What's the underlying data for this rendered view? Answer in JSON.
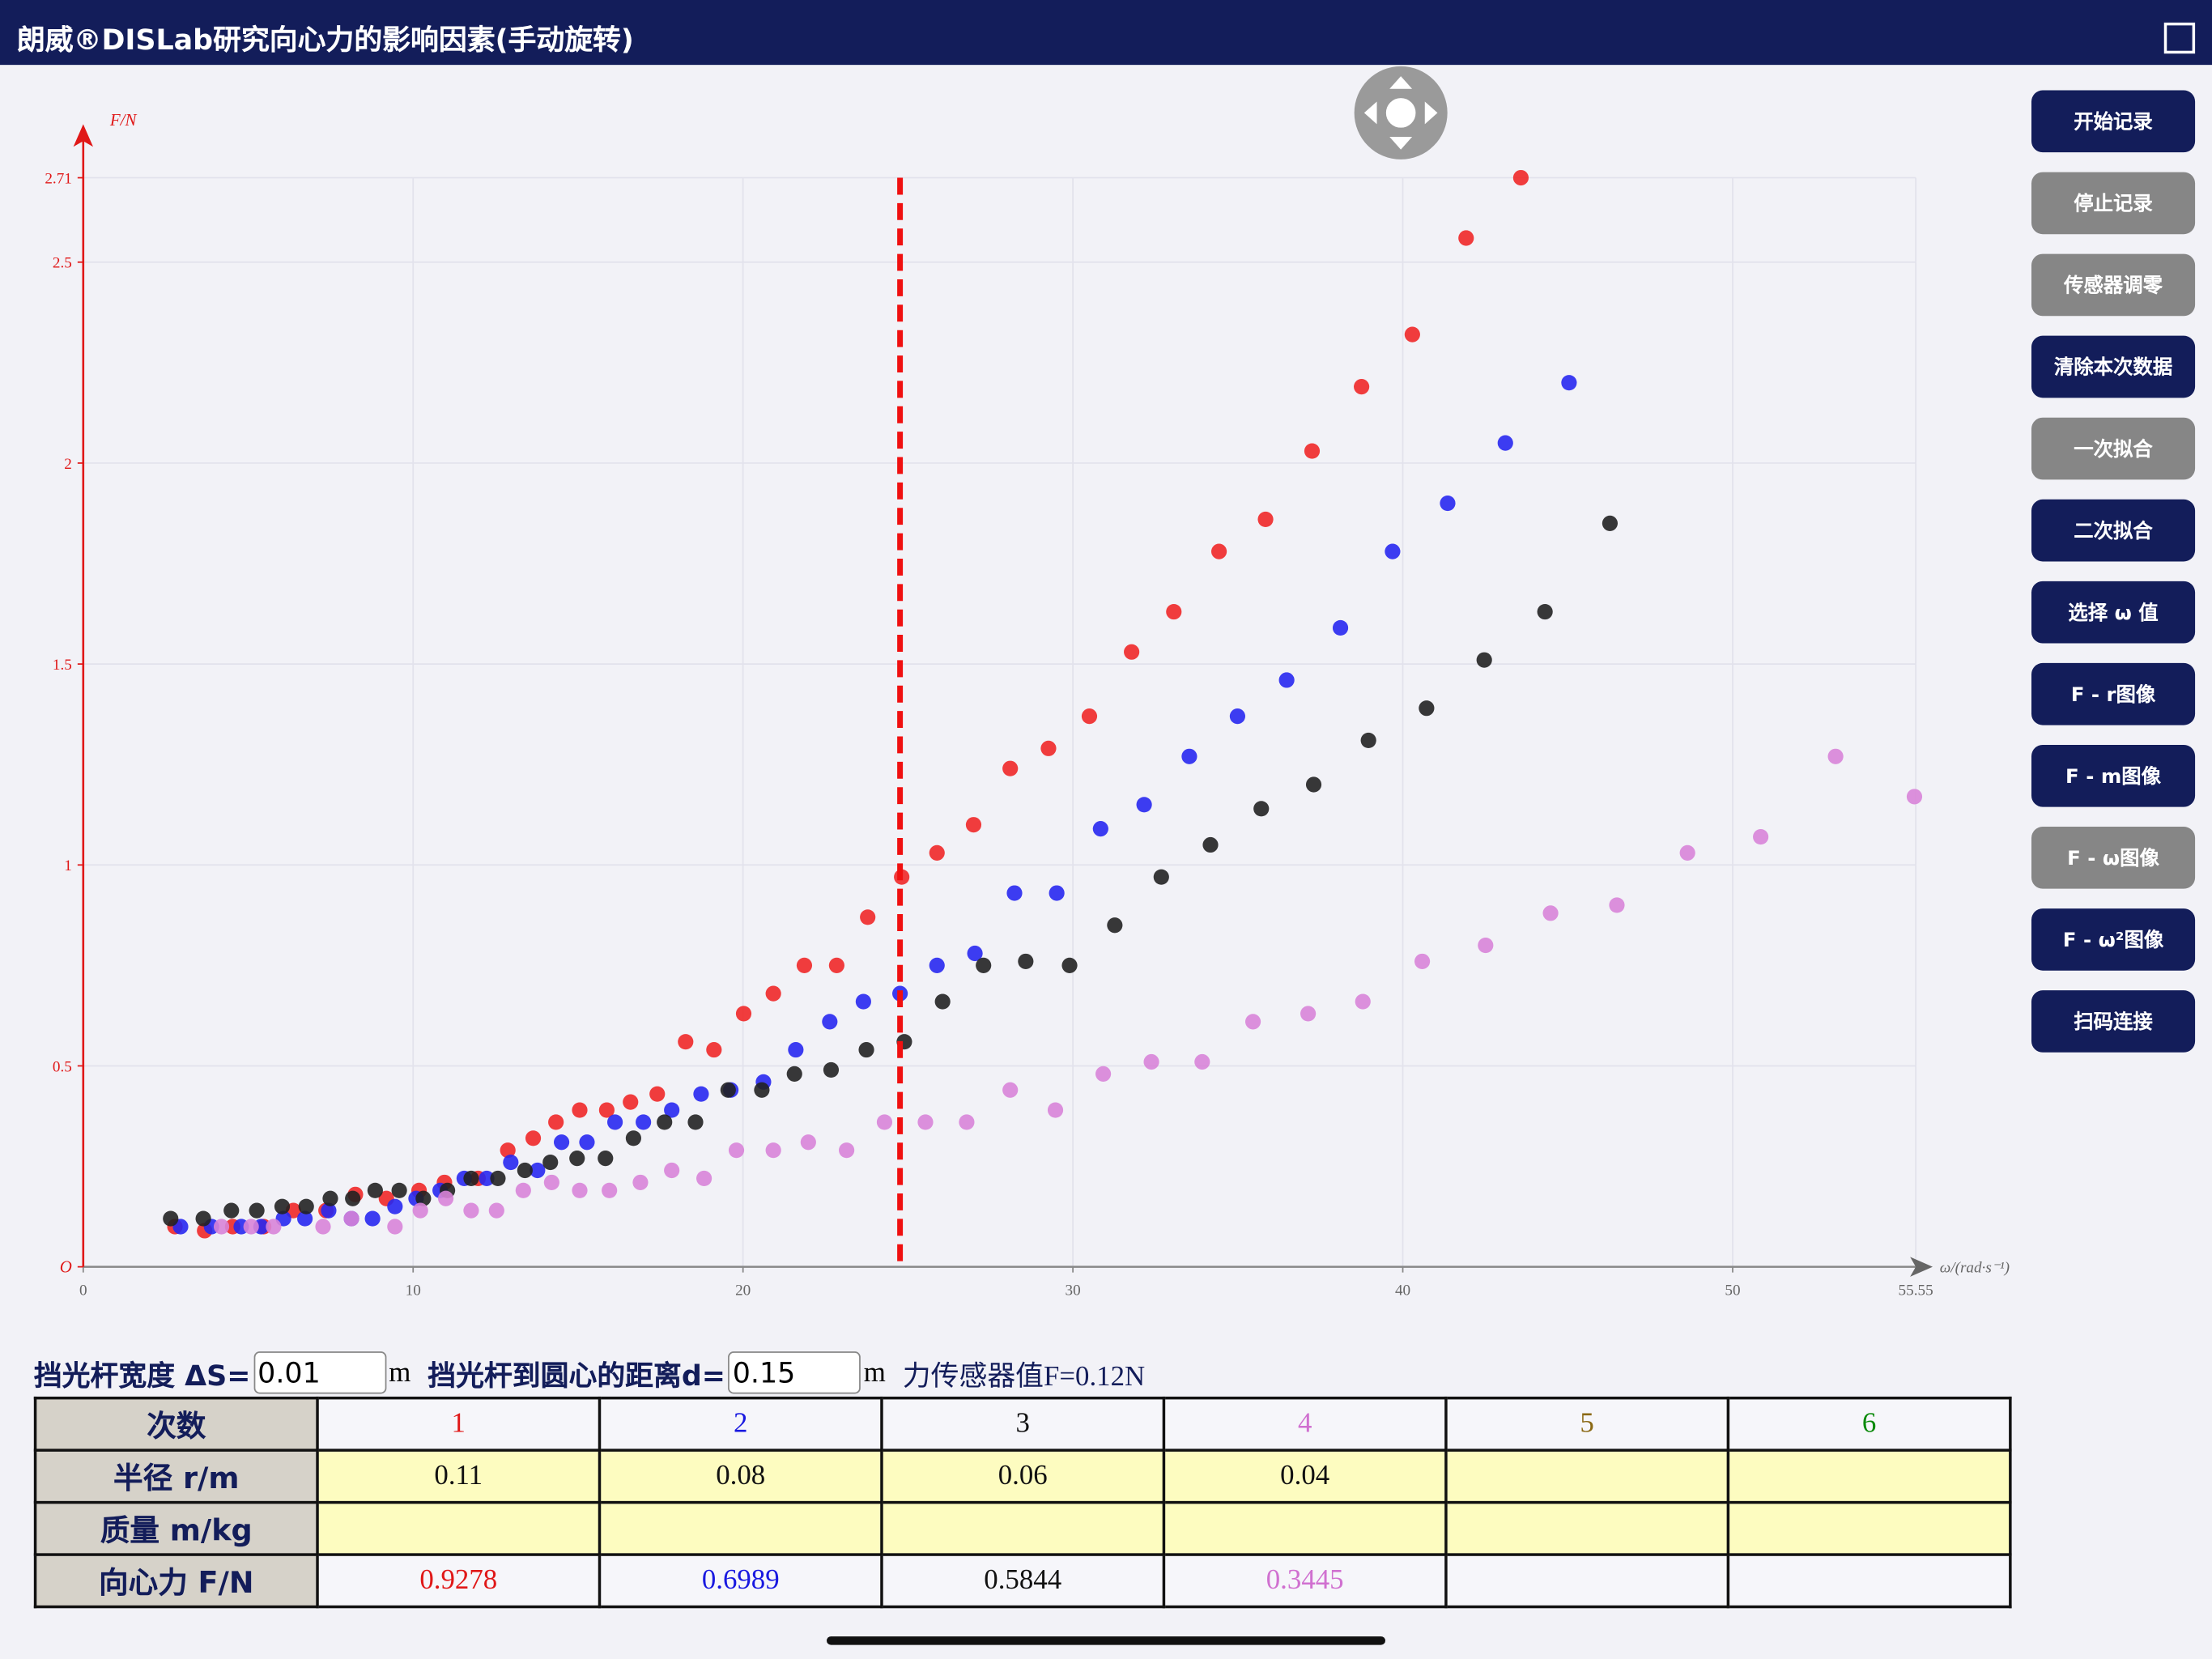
{
  "header": {
    "title": "朗威®DISLab研究向心力的影响因素(手动旋转)"
  },
  "buttons": [
    {
      "label": "开始记录",
      "enabled": true
    },
    {
      "label": "停止记录",
      "enabled": false
    },
    {
      "label": "传感器调零",
      "enabled": false
    },
    {
      "label": "清除本次数据",
      "enabled": true
    },
    {
      "label": "一次拟合",
      "enabled": false
    },
    {
      "label": "二次拟合",
      "enabled": true
    },
    {
      "label": "选择 ω 值",
      "enabled": true
    },
    {
      "label": "F - r图像",
      "enabled": true
    },
    {
      "label": "F - m图像",
      "enabled": true
    },
    {
      "label": "F - ω图像",
      "enabled": false
    },
    {
      "label": "F - ω²图像",
      "enabled": true
    },
    {
      "label": "扫码连接",
      "enabled": true
    }
  ],
  "chart_data": {
    "type": "scatter",
    "ylabel": "F/N",
    "xlabel": "ω/(rad·s⁻¹)",
    "xlim": [
      0,
      55.55
    ],
    "xticks": [
      0,
      10,
      20,
      30,
      40,
      50,
      55.55
    ],
    "ylim": [
      0,
      2.71
    ],
    "yticks": [
      {
        "value": 0,
        "label": "O"
      },
      0.5,
      1,
      1.5,
      2,
      2.5,
      2.71
    ],
    "grid": true,
    "cursor_x": 24.76,
    "series": [
      {
        "color": "#f02828",
        "x": [
          2.78,
          3.68,
          4.53,
          5.47,
          6.37,
          7.36,
          8.25,
          9.19,
          10.18,
          10.95,
          11.97,
          12.87,
          13.64,
          14.33,
          15.05,
          15.87,
          16.59,
          17.4,
          18.26,
          19.12,
          20.02,
          20.92,
          21.86,
          22.84,
          23.78,
          24.81,
          25.88,
          26.99,
          28.1,
          29.26,
          30.5,
          31.78,
          33.06,
          34.43,
          35.84,
          37.25,
          38.75,
          40.29,
          41.92,
          43.58
        ],
        "values": [
          0.1,
          0.09,
          0.1,
          0.1,
          0.14,
          0.14,
          0.18,
          0.17,
          0.19,
          0.21,
          0.22,
          0.29,
          0.32,
          0.36,
          0.39,
          0.39,
          0.41,
          0.43,
          0.56,
          0.54,
          0.63,
          0.68,
          0.75,
          0.75,
          0.87,
          0.97,
          1.03,
          1.1,
          1.24,
          1.29,
          1.37,
          1.53,
          1.63,
          1.78,
          1.86,
          2.03,
          2.19,
          2.32,
          2.56,
          2.71
        ]
      },
      {
        "color": "#2828f0",
        "x": [
          2.95,
          3.89,
          4.79,
          5.39,
          6.07,
          6.72,
          7.44,
          8.13,
          8.77,
          9.45,
          10.09,
          10.82,
          11.55,
          12.23,
          12.96,
          13.77,
          14.5,
          15.27,
          16.12,
          16.98,
          17.84,
          18.73,
          19.63,
          20.62,
          21.6,
          22.63,
          23.65,
          24.76,
          25.88,
          27.03,
          28.23,
          29.51,
          30.84,
          32.16,
          33.53,
          34.99,
          36.48,
          38.11,
          39.69,
          41.36,
          43.11,
          45.04
        ],
        "values": [
          0.1,
          0.1,
          0.1,
          0.1,
          0.12,
          0.12,
          0.14,
          0.12,
          0.12,
          0.15,
          0.17,
          0.19,
          0.22,
          0.22,
          0.26,
          0.24,
          0.31,
          0.31,
          0.36,
          0.36,
          0.39,
          0.43,
          0.44,
          0.46,
          0.54,
          0.61,
          0.66,
          0.68,
          0.75,
          0.78,
          0.93,
          0.93,
          1.09,
          1.15,
          1.27,
          1.37,
          1.46,
          1.59,
          1.78,
          1.9,
          2.05,
          2.2
        ]
      },
      {
        "color": "#222222",
        "x": [
          2.65,
          3.64,
          4.49,
          5.26,
          6.03,
          6.76,
          7.49,
          8.17,
          8.85,
          9.58,
          10.31,
          11.04,
          11.76,
          12.57,
          13.39,
          14.16,
          14.97,
          15.83,
          16.68,
          17.62,
          18.56,
          19.55,
          20.57,
          21.56,
          22.67,
          23.74,
          24.89,
          26.05,
          27.29,
          28.57,
          29.9,
          31.27,
          32.68,
          34.17,
          35.71,
          37.3,
          38.96,
          40.72,
          42.47,
          44.31,
          46.28
        ],
        "values": [
          0.12,
          0.12,
          0.14,
          0.14,
          0.15,
          0.15,
          0.17,
          0.17,
          0.19,
          0.19,
          0.17,
          0.19,
          0.22,
          0.22,
          0.24,
          0.26,
          0.27,
          0.27,
          0.32,
          0.36,
          0.36,
          0.44,
          0.44,
          0.48,
          0.49,
          0.54,
          0.56,
          0.66,
          0.75,
          0.76,
          0.75,
          0.85,
          0.97,
          1.05,
          1.14,
          1.2,
          1.31,
          1.39,
          1.51,
          1.63,
          1.85
        ]
      },
      {
        "color": "#d884d8",
        "x": [
          4.19,
          5.09,
          5.77,
          7.27,
          8.13,
          9.45,
          10.22,
          10.99,
          11.76,
          12.53,
          13.34,
          14.2,
          15.05,
          15.95,
          16.89,
          17.84,
          18.82,
          19.8,
          20.92,
          21.98,
          23.14,
          24.29,
          25.53,
          26.78,
          28.1,
          29.47,
          30.92,
          32.38,
          33.92,
          35.46,
          37.13,
          38.79,
          40.59,
          42.51,
          44.48,
          46.49,
          48.63,
          50.85,
          53.12,
          55.51
        ],
        "values": [
          0.1,
          0.1,
          0.1,
          0.1,
          0.12,
          0.1,
          0.14,
          0.17,
          0.14,
          0.14,
          0.19,
          0.21,
          0.19,
          0.19,
          0.21,
          0.24,
          0.22,
          0.29,
          0.29,
          0.31,
          0.29,
          0.36,
          0.36,
          0.36,
          0.44,
          0.39,
          0.48,
          0.51,
          0.51,
          0.61,
          0.63,
          0.66,
          0.76,
          0.8,
          0.88,
          0.9,
          1.03,
          1.07,
          1.27,
          1.17
        ]
      }
    ]
  },
  "controls": {
    "width_label": "挡光杆宽度 ΔS=",
    "width_value": 0.01,
    "width_unit": "m",
    "distance_label": "挡光杆到圆心的距离d=",
    "distance_value": 0.15,
    "distance_unit": "m",
    "force_reading": "力传感器值F=0.12N"
  },
  "table": {
    "header": "次数",
    "columns": [
      {
        "label": "1",
        "color": "#e01818"
      },
      {
        "label": "2",
        "color": "#1818e0"
      },
      {
        "label": "3",
        "color": "#111111"
      },
      {
        "label": "4",
        "color": "#d070d0"
      },
      {
        "label": "5",
        "color": "#8b6914"
      },
      {
        "label": "6",
        "color": "#0a8a0a"
      }
    ],
    "rows": [
      {
        "label": "半径 r/m",
        "values": [
          0.11,
          0.08,
          0.06,
          0.04
        ],
        "colored": false,
        "fill": "#fdfcc0"
      },
      {
        "label": "质量 m/kg",
        "values": [],
        "colored": false,
        "fill": "#fdfcc0"
      },
      {
        "label": "向心力 F/N",
        "values": [
          0.9278,
          0.6989,
          0.5844,
          0.3445
        ],
        "colored": true,
        "fill": "#f6f6fa"
      }
    ]
  }
}
